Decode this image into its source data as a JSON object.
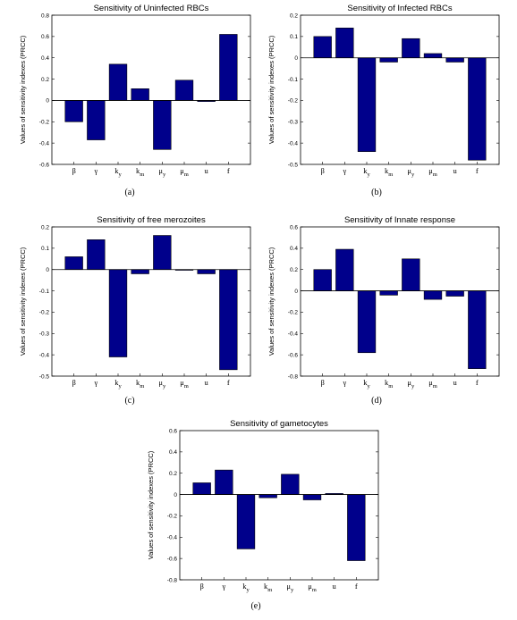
{
  "chart_data": [
    {
      "id": "a",
      "type": "bar",
      "title": "Sensitivity of Uninfected RBCs",
      "ylabel": "Values of sensitivity indexes (PRCC)",
      "xlabel": "",
      "caption": "(a)",
      "categories": [
        "β",
        "γ",
        "k_y",
        "k_m",
        "μ_y",
        "μ_m",
        "u",
        "f"
      ],
      "values": [
        -0.2,
        -0.37,
        0.34,
        0.11,
        -0.46,
        0.19,
        -0.01,
        0.62
      ],
      "ylim": [
        -0.6,
        0.8
      ],
      "yticks": [
        -0.6,
        -0.4,
        -0.2,
        0,
        0.2,
        0.4,
        0.6,
        0.8
      ],
      "ytick_labels": [
        "-0.6",
        "-0.4",
        "-0.2",
        "0",
        "0.2",
        "0.4",
        "0.6",
        "0.8"
      ],
      "bar_color": "#00008b",
      "grid": false,
      "legend": "none"
    },
    {
      "id": "b",
      "type": "bar",
      "title": "Sensitivity of Infected RBCs",
      "ylabel": "Values of sensitivity indexes (PRCC)",
      "xlabel": "",
      "caption": "(b)",
      "categories": [
        "β",
        "γ",
        "k_y",
        "k_m",
        "μ_y",
        "μ_m",
        "u",
        "f"
      ],
      "values": [
        0.1,
        0.14,
        -0.44,
        -0.02,
        0.09,
        0.02,
        -0.02,
        -0.48
      ],
      "ylim": [
        -0.5,
        0.2
      ],
      "yticks": [
        -0.5,
        -0.4,
        -0.3,
        -0.2,
        -0.1,
        0,
        0.1,
        0.2
      ],
      "ytick_labels": [
        "-0.5",
        "-0.4",
        "-0.3",
        "-0.2",
        "-0.1",
        "0",
        "0.1",
        "0.2"
      ],
      "bar_color": "#00008b",
      "grid": false,
      "legend": "none"
    },
    {
      "id": "c",
      "type": "bar",
      "title": "Sensitivity of free merozoites",
      "ylabel": "Values of sensitivity indexes (PRCC)",
      "xlabel": "",
      "caption": "(c)",
      "categories": [
        "β",
        "γ",
        "k_y",
        "k_m",
        "μ_y",
        "μ_m",
        "u",
        "f"
      ],
      "values": [
        0.06,
        0.14,
        -0.41,
        -0.02,
        0.16,
        0.0,
        -0.02,
        -0.47
      ],
      "ylim": [
        -0.5,
        0.2
      ],
      "yticks": [
        -0.5,
        -0.4,
        -0.3,
        -0.2,
        -0.1,
        0,
        0.1,
        0.2
      ],
      "ytick_labels": [
        "-0.5",
        "-0.4",
        "-0.3",
        "-0.2",
        "-0.1",
        "0",
        "0.1",
        "0.2"
      ],
      "bar_color": "#00008b",
      "grid": false,
      "legend": "none"
    },
    {
      "id": "d",
      "type": "bar",
      "title": "Sensitivity of Innate response",
      "ylabel": "Values of sensitivity indexes (PRCC)",
      "xlabel": "",
      "caption": "(d)",
      "categories": [
        "β",
        "γ",
        "k_y",
        "k_m",
        "μ_y",
        "μ_m",
        "u",
        "f"
      ],
      "values": [
        0.2,
        0.39,
        -0.58,
        -0.04,
        0.3,
        -0.08,
        -0.05,
        -0.73
      ],
      "ylim": [
        -0.8,
        0.6
      ],
      "yticks": [
        -0.8,
        -0.6,
        -0.4,
        -0.2,
        0,
        0.2,
        0.4,
        0.6
      ],
      "ytick_labels": [
        "-0.8",
        "-0.6",
        "-0.4",
        "-0.2",
        "0",
        "0.2",
        "0.4",
        "0.6"
      ],
      "bar_color": "#00008b",
      "grid": false,
      "legend": "none"
    },
    {
      "id": "e",
      "type": "bar",
      "title": "Sensitivity of gametocytes",
      "ylabel": "Values of sensitivity indexes (PRCC)",
      "xlabel": "",
      "caption": "(e)",
      "categories": [
        "β",
        "γ",
        "k_y",
        "k_m",
        "μ_y",
        "μ_m",
        "u",
        "f"
      ],
      "values": [
        0.11,
        0.23,
        -0.51,
        -0.03,
        0.19,
        -0.05,
        0.01,
        -0.62
      ],
      "ylim": [
        -0.8,
        0.6
      ],
      "yticks": [
        -0.8,
        -0.6,
        -0.4,
        -0.2,
        0,
        0.2,
        0.4,
        0.6
      ],
      "ytick_labels": [
        "-0.8",
        "-0.6",
        "-0.4",
        "-0.2",
        "0",
        "0.2",
        "0.4",
        "0.6"
      ],
      "bar_color": "#00008b",
      "grid": false,
      "legend": "none"
    }
  ]
}
